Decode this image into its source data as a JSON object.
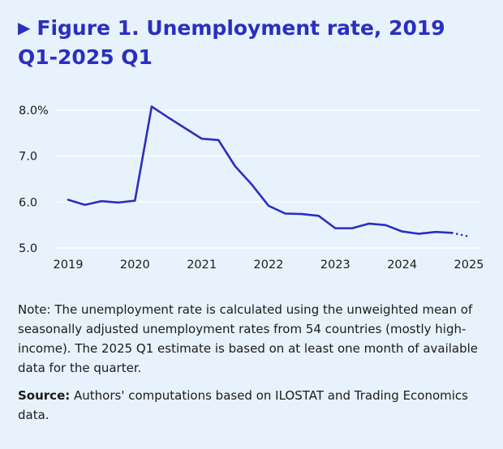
{
  "title": "Figure 1. Unemployment rate, 2019 Q1-2025 Q1",
  "title_marker_icon": "triangle-right-icon",
  "colors": {
    "background": "#e8f2fc",
    "accent": "#2a2fc0",
    "grid": "#ffffff"
  },
  "note": "Note: The unemployment rate is calculated using the unweighted mean of seasonally adjusted unemployment rates from 54 countries (mostly high-income). The 2025 Q1 estimate is based on at least one month of available data for the quarter.",
  "source": {
    "label": "Source:",
    "text": " Authors' computations based on ILOSTAT and Trading Economics data."
  },
  "chart_data": {
    "type": "line",
    "title": "Figure 1. Unemployment rate, 2019 Q1-2025 Q1",
    "xlabel": "",
    "ylabel": "",
    "x": [
      "2019 Q1",
      "2019 Q2",
      "2019 Q3",
      "2019 Q4",
      "2020 Q1",
      "2020 Q2",
      "2020 Q3",
      "2020 Q4",
      "2021 Q1",
      "2021 Q2",
      "2021 Q3",
      "2021 Q4",
      "2022 Q1",
      "2022 Q2",
      "2022 Q3",
      "2022 Q4",
      "2023 Q1",
      "2023 Q2",
      "2023 Q3",
      "2023 Q4",
      "2024 Q1",
      "2024 Q2",
      "2024 Q3",
      "2024 Q4",
      "2025 Q1"
    ],
    "values": [
      6.05,
      5.94,
      6.02,
      5.99,
      6.03,
      8.08,
      7.84,
      7.61,
      7.38,
      7.35,
      6.78,
      6.38,
      5.92,
      5.75,
      5.74,
      5.7,
      5.43,
      5.43,
      5.53,
      5.5,
      5.36,
      5.31,
      5.35,
      5.33,
      5.25
    ],
    "estimated_from_index": 23,
    "estimate_style": "dotted",
    "ylim": [
      5.0,
      8.0
    ],
    "y_ticks": [
      5.0,
      6.0,
      7.0,
      8.0
    ],
    "y_tick_labels": [
      "5.0",
      "6.0",
      "7.0",
      "8.0%"
    ],
    "x_tick_labels": [
      "2019",
      "2020",
      "2021",
      "2022",
      "2023",
      "2024",
      "2025"
    ],
    "grid": true,
    "legend": "none"
  }
}
